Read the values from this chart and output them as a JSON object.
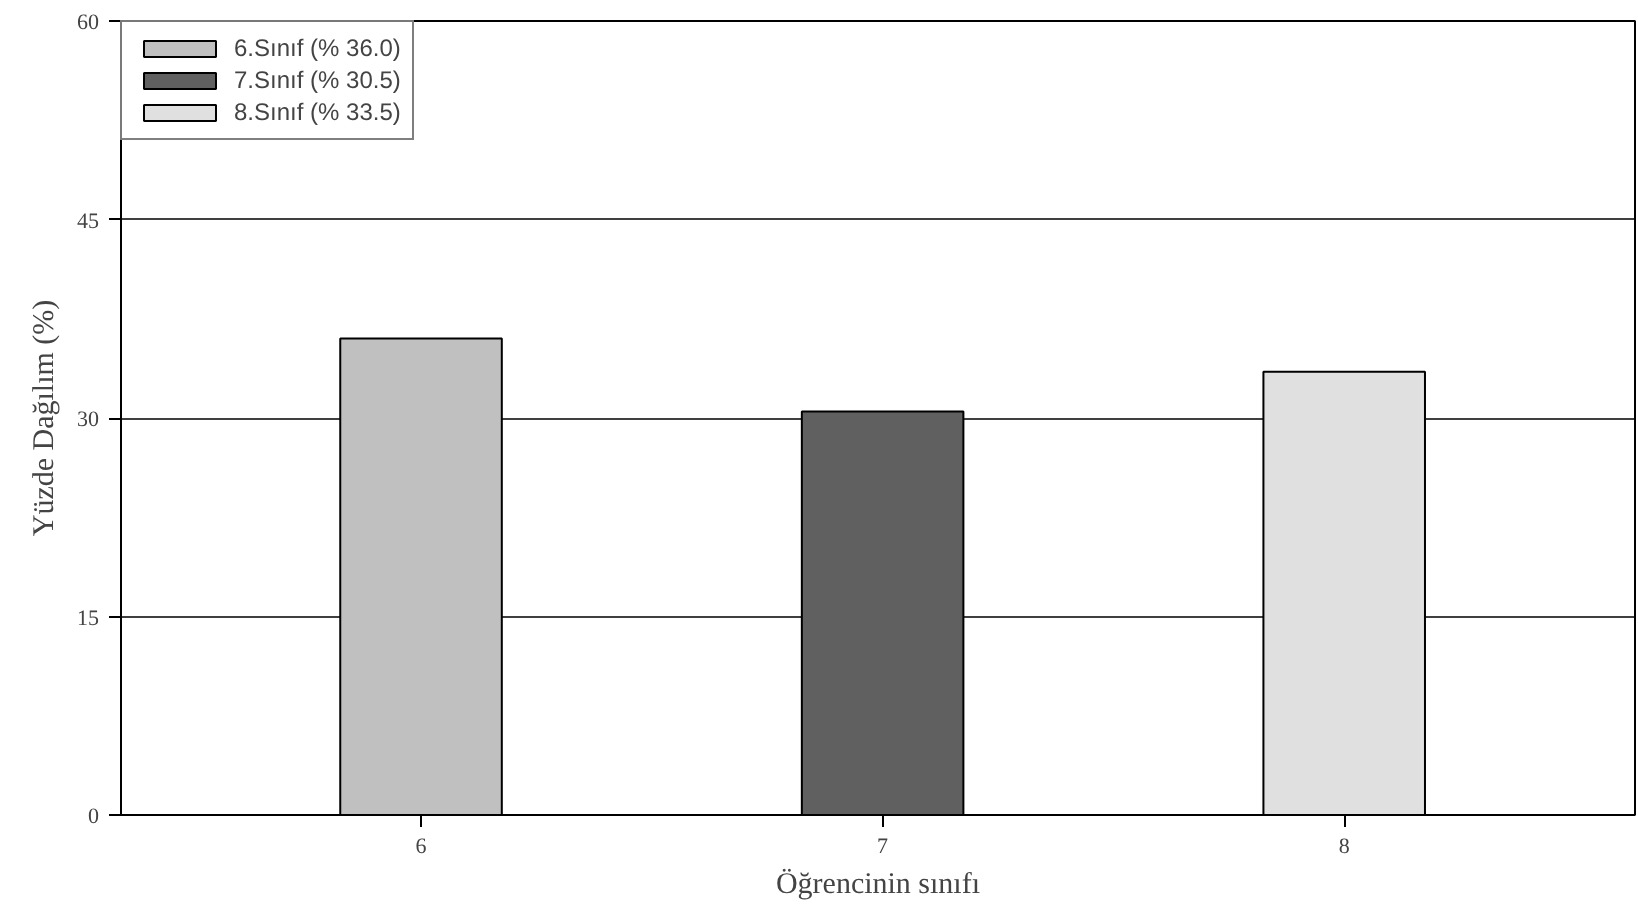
{
  "chart_data": {
    "type": "bar",
    "xlabel": "Öğrencinin sınıfı",
    "ylabel": "Yüzde Dağılım (%)",
    "categories": [
      "6",
      "7",
      "8"
    ],
    "series": [
      {
        "name": "6.Sınıf (% 36.0)",
        "color": "#c0c0c0",
        "values": [
          36.0,
          null,
          null
        ]
      },
      {
        "name": "7.Sınıf (% 30.5)",
        "color": "#606060",
        "values": [
          null,
          30.5,
          null
        ]
      },
      {
        "name": "8.Sınıf (% 33.5)",
        "color": "#e0e0e0",
        "values": [
          null,
          null,
          33.5
        ]
      }
    ],
    "ylim": [
      0,
      60
    ],
    "yticks": [
      0,
      15,
      30,
      45,
      60
    ],
    "grid": "y",
    "legend": "top left"
  }
}
